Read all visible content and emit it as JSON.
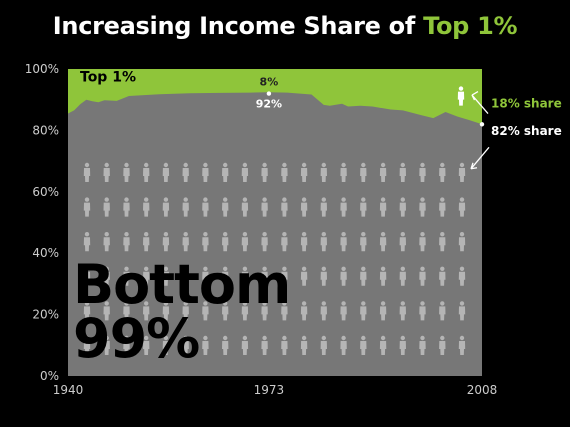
{
  "title": {
    "prefix": "Increasing Income Share of ",
    "accent": "Top 1%"
  },
  "colors": {
    "background": "#000000",
    "bottom_area": "#777777",
    "top_area": "#8fc53a",
    "figure": "#b5b5b5",
    "accent_text": "#8fc53a",
    "axis_text": "#cccccc"
  },
  "chart_data": {
    "type": "area",
    "title": "Increasing Income Share of Top 1%",
    "x": [
      1940,
      1941,
      1942,
      1943,
      1944,
      1945,
      1946,
      1948,
      1950,
      1955,
      1960,
      1965,
      1970,
      1973,
      1976,
      1980,
      1982,
      1983,
      1985,
      1986,
      1988,
      1990,
      1993,
      1995,
      1998,
      2000,
      2002,
      2004,
      2006,
      2008
    ],
    "series": [
      {
        "name": "Bottom 99%",
        "values": [
          85.5,
          86.5,
          88.5,
          90,
          89.5,
          89.2,
          89.8,
          89.6,
          91.2,
          91.8,
          92.1,
          92.2,
          92.3,
          92.4,
          92.3,
          91.7,
          88.3,
          88,
          88.7,
          87.8,
          88,
          87.8,
          86.8,
          86.5,
          85,
          84,
          86,
          84.5,
          83.3,
          82
        ]
      },
      {
        "name": "Top 1%",
        "values": [
          14.5,
          13.5,
          11.5,
          10,
          10.5,
          10.8,
          10.2,
          10.4,
          8.8,
          8.2,
          7.9,
          7.8,
          7.7,
          7.6,
          7.7,
          8.3,
          11.7,
          12,
          11.3,
          12.2,
          12,
          12.2,
          13.2,
          13.5,
          15,
          16,
          14,
          15.5,
          16.7,
          18
        ]
      }
    ],
    "ylim": [
      0,
      100
    ],
    "y_ticks": [
      "0%",
      "20%",
      "40%",
      "60%",
      "80%",
      "100%"
    ],
    "y_tick_values": [
      0,
      20,
      40,
      60,
      80,
      100
    ],
    "x_ticks": [
      "1940",
      "1973",
      "2008"
    ],
    "x_tick_values": [
      1940,
      1973,
      2008
    ],
    "labels": {
      "top_area": "Top 1%",
      "bottom_area_line1": "Bottom",
      "bottom_area_line2": "99%"
    },
    "annotations": {
      "top_1973": "8%",
      "bottom_1973": "92%",
      "top_2008": "18% share",
      "bottom_2008": "82% share"
    },
    "annotation_values": {
      "year_1973": 1973,
      "share_1973": 92,
      "year_2008": 2008,
      "share_2008": 82
    },
    "people_grid": {
      "rows": 6,
      "columns": 20
    },
    "grid": false,
    "legend": "none"
  }
}
